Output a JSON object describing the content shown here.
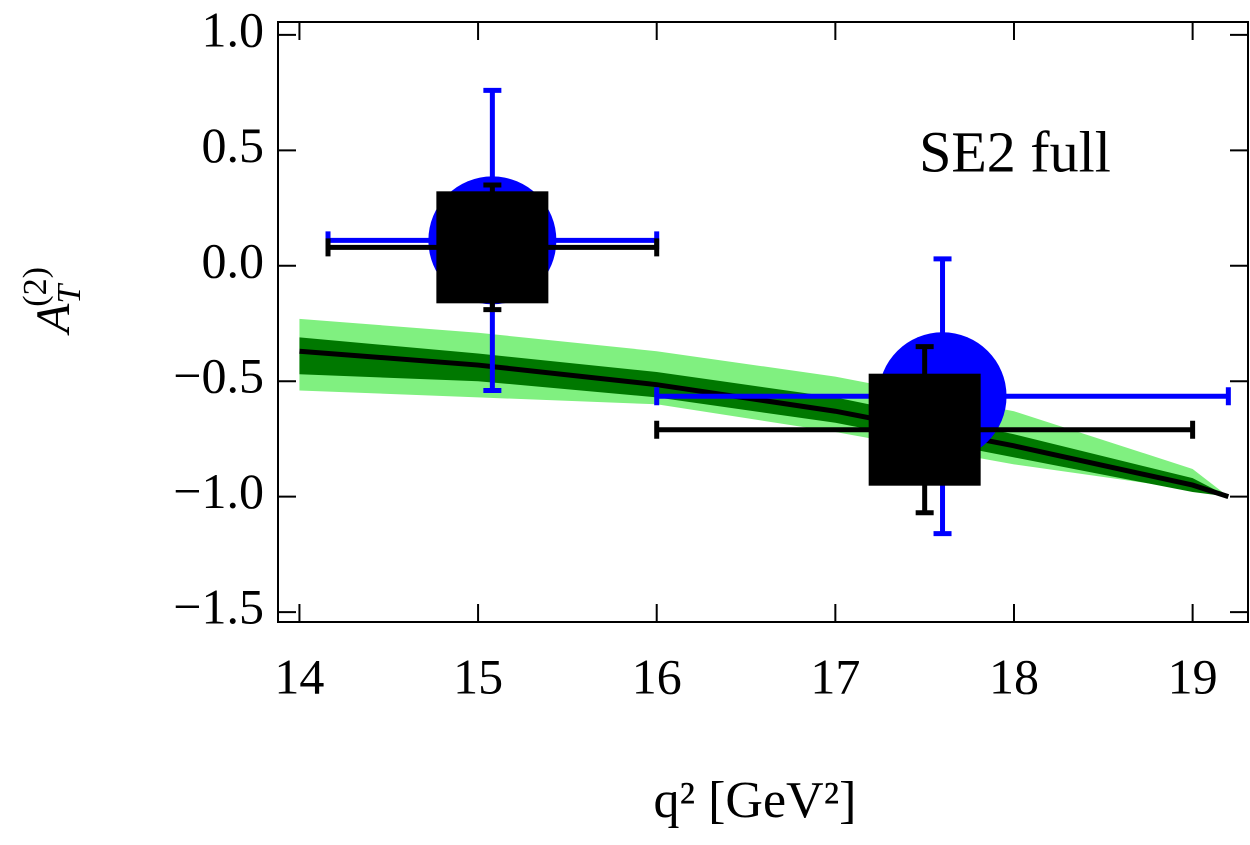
{
  "chart_data": {
    "type": "scatter",
    "annotation": "SE2 full",
    "xlabel": "q²  [GeV²]",
    "ylabel": {
      "base": "A",
      "sub": "T",
      "sup": "(2)"
    },
    "xlim": [
      13.88,
      19.31
    ],
    "ylim": [
      -1.543,
      1.056
    ],
    "xticks": [
      14,
      15,
      16,
      17,
      18,
      19
    ],
    "yticks": [
      {
        "value": -1.5,
        "label": "−1.5"
      },
      {
        "value": -1.0,
        "label": "−1.0"
      },
      {
        "value": -0.5,
        "label": "−0.5"
      },
      {
        "value": 0.0,
        "label": "0.0"
      },
      {
        "value": 0.5,
        "label": "0.5"
      },
      {
        "value": 1.0,
        "label": "1.0"
      }
    ],
    "bands": [
      {
        "color": "#80f080",
        "x": [
          14,
          15,
          16,
          17,
          18,
          19,
          19.2
        ],
        "upper": [
          -0.23,
          -0.29,
          -0.37,
          -0.48,
          -0.63,
          -0.88,
          -1.0
        ],
        "lower": [
          -0.54,
          -0.57,
          -0.6,
          -0.72,
          -0.86,
          -0.97,
          -1.0
        ]
      },
      {
        "color": "#007800",
        "x": [
          14,
          15,
          16,
          17,
          18,
          19,
          19.2
        ],
        "upper": [
          -0.31,
          -0.38,
          -0.46,
          -0.57,
          -0.73,
          -0.92,
          -1.0
        ],
        "lower": [
          -0.47,
          -0.5,
          -0.57,
          -0.68,
          -0.83,
          -0.98,
          -1.0
        ]
      }
    ],
    "line": {
      "color": "#000000",
      "x": [
        14,
        15,
        16,
        17,
        18,
        19,
        19.2
      ],
      "y": [
        -0.37,
        -0.43,
        -0.515,
        -0.63,
        -0.78,
        -0.95,
        -1.0
      ]
    },
    "series": [
      {
        "color": "#0000ff",
        "marker": "circle",
        "x": [
          15.08,
          17.6
        ],
        "y": [
          0.11,
          -0.565
        ],
        "xerr": [
          0.92,
          1.6
        ],
        "yerr": [
          0.65,
          0.595
        ]
      },
      {
        "color": "#000000",
        "marker": "square",
        "x": [
          15.08,
          17.5
        ],
        "y": [
          0.08,
          -0.71
        ],
        "xerr": [
          0.92,
          1.5
        ],
        "yerr": [
          0.27,
          0.36
        ]
      }
    ]
  }
}
